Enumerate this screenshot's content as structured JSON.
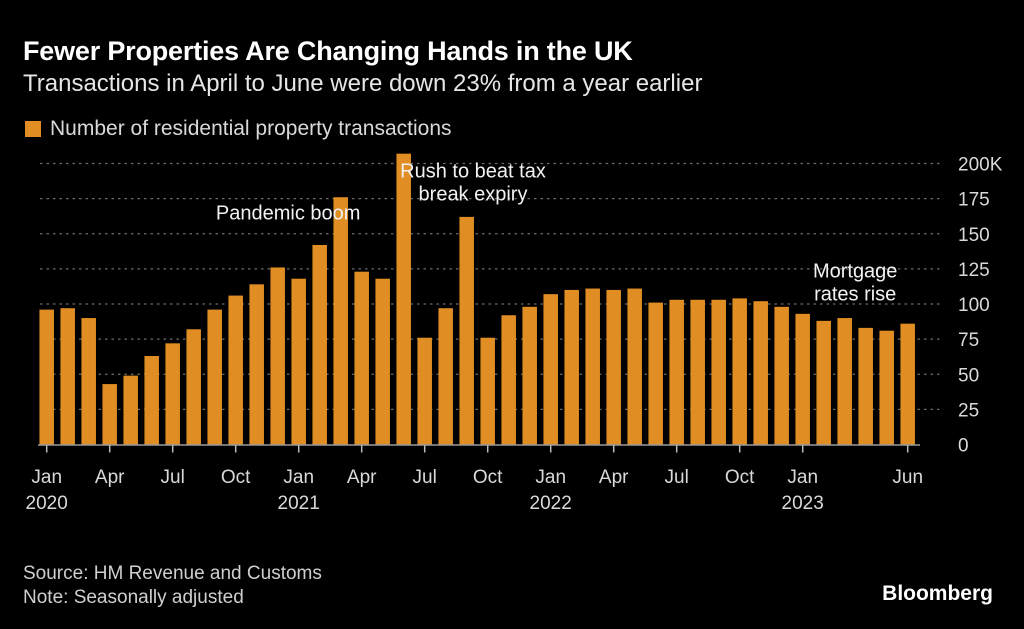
{
  "header": {
    "title": "Fewer Properties Are Changing Hands in the UK",
    "subtitle": "Transactions in April to June were down 23% from a year earlier"
  },
  "footer": {
    "source": "Source: HM Revenue and Customs",
    "note": "Note: Seasonally adjusted",
    "brand": "Bloomberg"
  },
  "chart_data": {
    "type": "bar",
    "title": "Fewer Properties Are Changing Hands in the UK",
    "subtitle": "Transactions in April to June were down 23% from a year earlier",
    "xlabel": "",
    "ylabel": "",
    "units": "thousands",
    "color": "#e08e24",
    "legend": {
      "position": "top-left",
      "entries": [
        "Number of residential property transactions"
      ]
    },
    "grid": true,
    "ylim": [
      0,
      200
    ],
    "yticks": [
      0,
      25,
      50,
      75,
      100,
      125,
      150,
      175,
      200
    ],
    "ytick_labels": [
      "0",
      "25",
      "50",
      "75",
      "100",
      "125",
      "150",
      "175",
      "200K"
    ],
    "categories": [
      "2020-01",
      "2020-02",
      "2020-03",
      "2020-04",
      "2020-05",
      "2020-06",
      "2020-07",
      "2020-08",
      "2020-09",
      "2020-10",
      "2020-11",
      "2020-12",
      "2021-01",
      "2021-02",
      "2021-03",
      "2021-04",
      "2021-05",
      "2021-06",
      "2021-07",
      "2021-08",
      "2021-09",
      "2021-10",
      "2021-11",
      "2021-12",
      "2022-01",
      "2022-02",
      "2022-03",
      "2022-04",
      "2022-05",
      "2022-06",
      "2022-07",
      "2022-08",
      "2022-09",
      "2022-10",
      "2022-11",
      "2022-12",
      "2023-01",
      "2023-02",
      "2023-03",
      "2023-04",
      "2023-05",
      "2023-06"
    ],
    "series": [
      {
        "name": "Number of residential property transactions",
        "values": [
          96,
          97,
          90,
          43,
          49,
          63,
          72,
          82,
          96,
          106,
          114,
          126,
          118,
          142,
          176,
          123,
          118,
          207,
          76,
          97,
          162,
          76,
          92,
          98,
          107,
          110,
          111,
          110,
          111,
          101,
          103,
          103,
          103,
          104,
          102,
          98,
          93,
          88,
          90,
          83,
          81,
          86
        ]
      }
    ],
    "xticks": [
      {
        "index": 0,
        "label": "Jan",
        "year": "2020"
      },
      {
        "index": 3,
        "label": "Apr",
        "year": ""
      },
      {
        "index": 6,
        "label": "Jul",
        "year": ""
      },
      {
        "index": 9,
        "label": "Oct",
        "year": ""
      },
      {
        "index": 12,
        "label": "Jan",
        "year": "2021"
      },
      {
        "index": 15,
        "label": "Apr",
        "year": ""
      },
      {
        "index": 18,
        "label": "Jul",
        "year": ""
      },
      {
        "index": 21,
        "label": "Oct",
        "year": ""
      },
      {
        "index": 24,
        "label": "Jan",
        "year": "2022"
      },
      {
        "index": 27,
        "label": "Apr",
        "year": ""
      },
      {
        "index": 30,
        "label": "Jul",
        "year": ""
      },
      {
        "index": 33,
        "label": "Oct",
        "year": ""
      },
      {
        "index": 36,
        "label": "Jan",
        "year": "2023"
      },
      {
        "index": 41,
        "label": "Jun",
        "year": ""
      }
    ],
    "annotations": [
      {
        "lines": [
          "Pandemic boom"
        ],
        "index": 11.5,
        "value": 160
      },
      {
        "lines": [
          "Rush to beat tax",
          "break expiry"
        ],
        "index": 20.3,
        "value": 190
      },
      {
        "lines": [
          "Mortgage",
          "rates rise"
        ],
        "index": 38.5,
        "value": 119
      }
    ]
  }
}
